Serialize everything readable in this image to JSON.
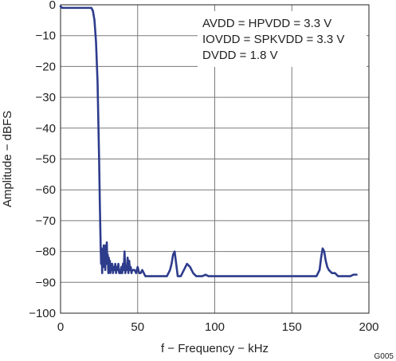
{
  "chart_data": {
    "type": "line",
    "title": "",
    "xlabel": "f − Frequency − kHz",
    "ylabel": "Amplitude − dBFS",
    "xlim": [
      0,
      200
    ],
    "ylim": [
      -100,
      0
    ],
    "x_ticks": [
      0,
      50,
      100,
      150,
      200
    ],
    "y_ticks": [
      0,
      -10,
      -20,
      -30,
      -40,
      -50,
      -60,
      -70,
      -80,
      -90,
      -100
    ],
    "x_tick_labels": [
      "0",
      "50",
      "100",
      "150",
      "200"
    ],
    "y_tick_labels": [
      "0",
      "−10",
      "−20",
      "−30",
      "−40",
      "−50",
      "−60",
      "−70",
      "−80",
      "−90",
      "−100"
    ],
    "grid": true,
    "line_color": "#2e3c8c",
    "annotations": [
      "AVDD = HPVDD = 3.3 V",
      "IOVDD = SPKVDD = 3.3 V",
      "DVDD = 1.8 V"
    ],
    "figure_code": "G005",
    "series": [
      {
        "x": [
          0,
          1,
          5,
          10,
          15,
          18,
          20,
          21,
          22,
          23,
          24,
          25,
          25.5,
          26,
          26.3,
          26.6,
          27,
          27.3,
          27.6,
          28,
          28.3,
          28.6,
          29,
          29.3,
          29.6,
          30,
          30.3,
          30.6,
          31,
          31.3,
          31.6,
          32,
          32.3,
          32.6,
          33,
          33.5,
          34,
          34.5,
          35,
          35.5,
          36,
          36.5,
          37,
          37.5,
          38,
          38.5,
          39,
          39.5,
          40,
          40.5,
          41,
          41.5,
          42,
          42.5,
          43,
          43.5,
          44,
          44.5,
          45,
          45.5,
          46,
          46.5,
          47,
          48,
          49,
          50,
          51,
          52,
          53,
          54,
          55,
          57,
          60,
          63,
          66,
          69,
          71,
          72,
          73,
          74,
          75,
          76,
          78,
          80,
          82,
          84,
          86,
          88,
          90,
          92,
          94,
          96,
          100,
          104,
          108,
          112,
          116,
          120,
          124,
          128,
          132,
          136,
          140,
          145,
          150,
          155,
          160,
          164,
          166,
          168,
          169,
          170,
          171,
          172,
          173,
          174,
          176,
          178,
          180,
          184,
          188,
          190,
          192
        ],
        "y": [
          -0.5,
          -1,
          -1,
          -1,
          -1,
          -1,
          -1,
          -2,
          -5,
          -12,
          -25,
          -50,
          -65,
          -78,
          -84,
          -79,
          -87,
          -80,
          -84,
          -78,
          -85,
          -79,
          -86,
          -78,
          -84,
          -77,
          -84,
          -81,
          -87,
          -82,
          -86,
          -83,
          -87,
          -84,
          -86,
          -84,
          -87,
          -85,
          -86,
          -84,
          -87,
          -85,
          -86,
          -84,
          -87,
          -86,
          -87,
          -85,
          -87,
          -84,
          -86,
          -80,
          -87,
          -85,
          -86,
          -82,
          -87,
          -83,
          -86,
          -85,
          -87,
          -86,
          -86,
          -86,
          -87,
          -85,
          -87,
          -87,
          -86,
          -87,
          -88,
          -88,
          -88,
          -88,
          -88,
          -88,
          -86,
          -84,
          -81,
          -80,
          -84,
          -88,
          -88,
          -86,
          -84,
          -85,
          -87,
          -88,
          -88,
          -88,
          -87.5,
          -88,
          -88,
          -88,
          -88,
          -88,
          -88,
          -88,
          -88,
          -88,
          -88,
          -88,
          -88,
          -88,
          -88,
          -88,
          -88,
          -88,
          -88,
          -86,
          -82,
          -79,
          -80,
          -83,
          -85,
          -86,
          -87,
          -87,
          -88,
          -88,
          -88,
          -87.5,
          -87.5
        ]
      }
    ]
  }
}
